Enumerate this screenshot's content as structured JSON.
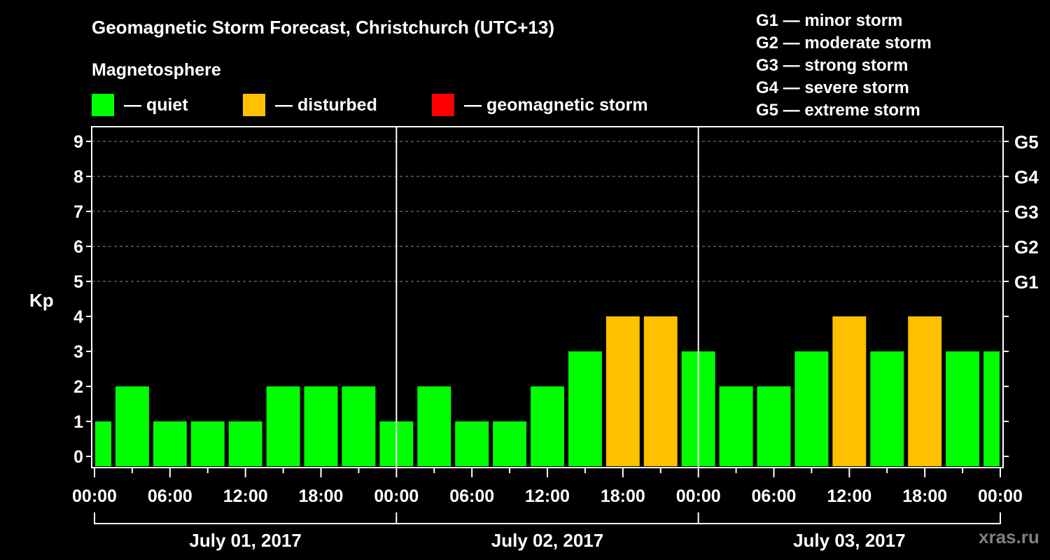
{
  "header": {
    "title": "Geomagnetic Storm Forecast, Christchurch (UTC+13)",
    "subtitle": "Magnetosphere"
  },
  "legend": [
    {
      "label": "— quiet",
      "color": "#00ff00"
    },
    {
      "label": "— disturbed",
      "color": "#ffc000"
    },
    {
      "label": "— geomagnetic storm",
      "color": "#ff0000"
    }
  ],
  "g_scale": [
    "G1 — minor storm",
    "G2 — moderate storm",
    "G3 — strong storm",
    "G4 — severe storm",
    "G5 — extreme storm"
  ],
  "watermark": "xras.ru",
  "chart_data": {
    "type": "bar",
    "title": "Geomagnetic Storm Forecast, Christchurch (UTC+13)",
    "xlabel": "",
    "ylabel": "Kp",
    "ylim": [
      0,
      9
    ],
    "yticks": [
      0,
      1,
      2,
      3,
      4,
      5,
      6,
      7,
      8,
      9
    ],
    "right_axis_labels": [
      {
        "kp": 5,
        "label": "G1"
      },
      {
        "kp": 6,
        "label": "G2"
      },
      {
        "kp": 7,
        "label": "G3"
      },
      {
        "kp": 8,
        "label": "G4"
      },
      {
        "kp": 9,
        "label": "G5"
      }
    ],
    "grid": "dashed horizontal at Kp 5-9",
    "x_tick_labels": [
      "00:00",
      "06:00",
      "12:00",
      "18:00",
      "00:00",
      "06:00",
      "12:00",
      "18:00",
      "00:00",
      "06:00",
      "12:00",
      "18:00",
      "00:00"
    ],
    "date_labels": [
      "July 01, 2017",
      "July 02, 2017",
      "July 03, 2017"
    ],
    "colors": {
      "quiet": "#00ff00",
      "disturbed": "#ffc000",
      "storm": "#ff0000"
    },
    "bar_start_hours": [
      -1.5,
      1.5,
      4.5,
      7.5,
      10.5,
      13.5,
      16.5,
      19.5,
      22.5,
      25.5,
      28.5,
      31.5,
      34.5,
      37.5,
      40.5,
      43.5,
      46.5,
      49.5,
      52.5,
      55.5,
      58.5,
      61.5,
      64.5,
      67.5,
      70.5
    ],
    "values": [
      1,
      2,
      1,
      1,
      1,
      2,
      2,
      2,
      1,
      2,
      1,
      1,
      2,
      3,
      4,
      4,
      3,
      2,
      2,
      3,
      4,
      3,
      4,
      3,
      3
    ],
    "status": [
      "quiet",
      "quiet",
      "quiet",
      "quiet",
      "quiet",
      "quiet",
      "quiet",
      "quiet",
      "quiet",
      "quiet",
      "quiet",
      "quiet",
      "quiet",
      "quiet",
      "disturbed",
      "disturbed",
      "quiet",
      "quiet",
      "quiet",
      "quiet",
      "disturbed",
      "quiet",
      "disturbed",
      "quiet",
      "quiet"
    ]
  }
}
